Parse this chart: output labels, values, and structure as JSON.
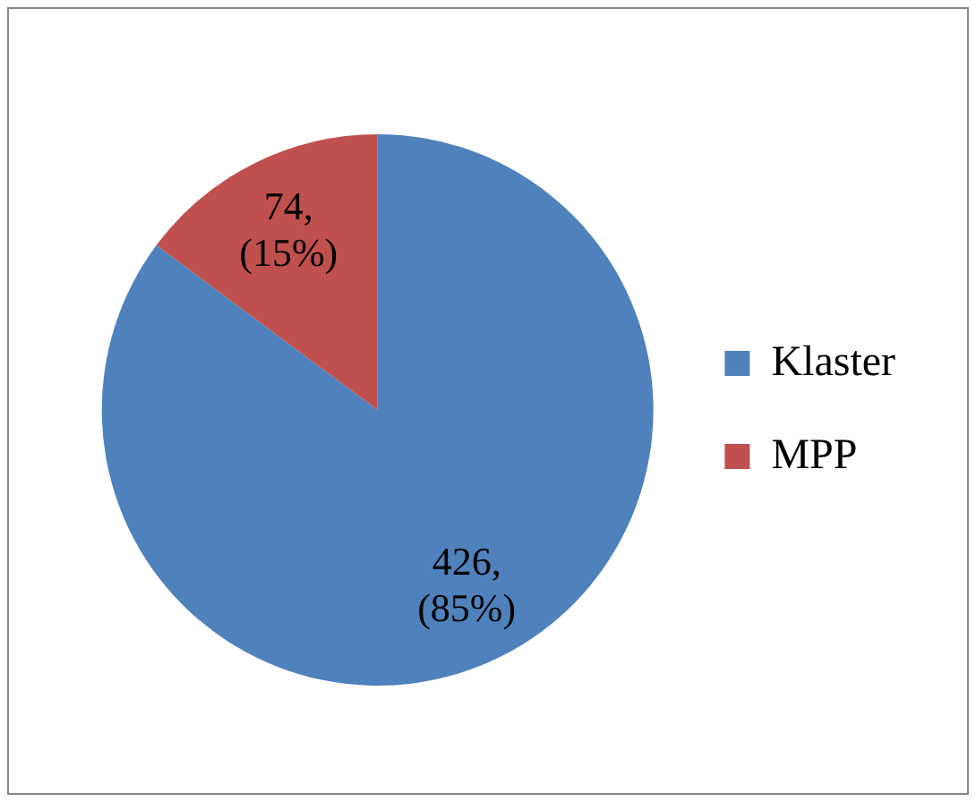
{
  "chart_data": {
    "type": "pie",
    "categories": [
      "Klaster",
      "MPP"
    ],
    "values": [
      426,
      74
    ],
    "colors": [
      "#4f81bd",
      "#c0504d"
    ],
    "value_labels": [
      "426, (85%)",
      "74, (15%)"
    ],
    "legend": "right"
  }
}
